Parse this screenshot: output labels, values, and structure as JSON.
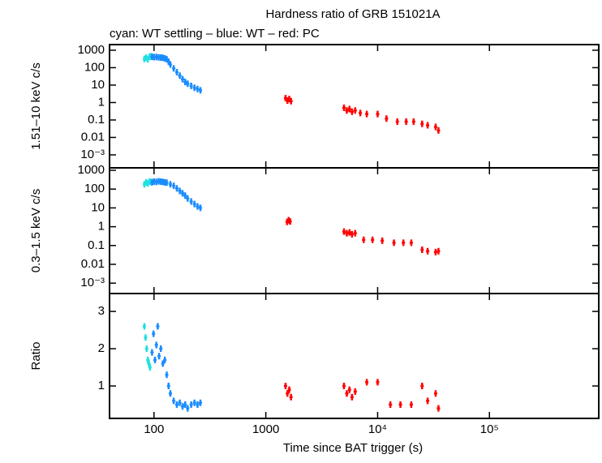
{
  "chart_data": [
    {
      "type": "scatter",
      "title": "Hardness ratio of GRB 151021A",
      "subtitle": "cyan: WT settling – blue: WT – red: PC",
      "ylabel": "1.51–10 keV c/s",
      "xlog": true,
      "ylog": true,
      "xlim": [
        40,
        950000
      ],
      "ylim": [
        0.00018,
        2100
      ],
      "yticks": [
        1000,
        100,
        10,
        1,
        0.1,
        0.01,
        {
          "value": 0.001,
          "label": "10⁻³"
        }
      ],
      "series": [
        {
          "color": "#20e0e0",
          "x": [
            82,
            85,
            88,
            91,
            94
          ],
          "values": [
            320,
            380,
            300,
            420,
            450
          ]
        },
        {
          "color": "#1a8cff",
          "x": [
            96,
            100,
            105,
            110,
            115,
            120,
            125,
            130,
            135,
            140,
            150,
            160,
            170,
            180,
            190,
            200,
            215,
            230,
            245,
            260
          ],
          "values": [
            420,
            400,
            410,
            390,
            380,
            370,
            340,
            300,
            220,
            150,
            90,
            55,
            35,
            22,
            15,
            12,
            9,
            7,
            6,
            5
          ]
        },
        {
          "color": "#ff0000",
          "x": [
            1500,
            1560,
            1620,
            1680,
            5000,
            5300,
            5600,
            5900,
            6300,
            7000,
            8000,
            10000,
            12000,
            15000,
            18000,
            21000,
            25000,
            28000,
            33000,
            35000
          ],
          "values": [
            1.8,
            1.3,
            1.6,
            1.2,
            0.5,
            0.35,
            0.42,
            0.3,
            0.35,
            0.25,
            0.22,
            0.22,
            0.12,
            0.08,
            0.08,
            0.08,
            0.06,
            0.05,
            0.04,
            0.025
          ]
        }
      ]
    },
    {
      "type": "scatter",
      "ylabel": "0.3–1.5 keV c/s",
      "xlog": true,
      "ylog": true,
      "xlim": [
        40,
        950000
      ],
      "ylim": [
        0.00028,
        1350
      ],
      "yticks": [
        1000,
        100,
        10,
        1,
        0.1,
        0.01,
        {
          "value": 0.001,
          "label": "10⁻³"
        }
      ],
      "series": [
        {
          "color": "#20e0e0",
          "x": [
            82,
            85,
            88,
            91,
            94
          ],
          "values": [
            180,
            230,
            200,
            250,
            240
          ]
        },
        {
          "color": "#1a8cff",
          "x": [
            96,
            100,
            105,
            110,
            115,
            120,
            125,
            130,
            140,
            150,
            160,
            170,
            180,
            190,
            200,
            215,
            230,
            245,
            260
          ],
          "values": [
            230,
            250,
            240,
            260,
            250,
            240,
            230,
            220,
            180,
            150,
            110,
            80,
            60,
            45,
            32,
            22,
            16,
            12,
            10
          ]
        },
        {
          "color": "#ff0000",
          "x": [
            1550,
            1600,
            1650,
            5000,
            5300,
            5600,
            5900,
            6300,
            7500,
            9000,
            11000,
            14000,
            17000,
            20000,
            25000,
            28000,
            33000,
            35000
          ],
          "values": [
            1.8,
            2.2,
            1.9,
            0.55,
            0.45,
            0.5,
            0.4,
            0.45,
            0.2,
            0.2,
            0.18,
            0.14,
            0.14,
            0.14,
            0.06,
            0.05,
            0.045,
            0.05
          ]
        }
      ]
    },
    {
      "type": "scatter",
      "ylabel": "Ratio",
      "xlabel": "Time since BAT trigger (s)",
      "xlog": true,
      "ylog": false,
      "xlim": [
        40,
        950000
      ],
      "ylim": [
        0.13,
        3.48
      ],
      "xticks": [
        100,
        1000,
        {
          "value": 10000,
          "label": "10⁴"
        },
        {
          "value": 100000,
          "label": "10⁵"
        }
      ],
      "yticks": [
        1,
        2,
        3
      ],
      "series": [
        {
          "color": "#20e0e0",
          "x": [
            82,
            84,
            86,
            88,
            90,
            92
          ],
          "values": [
            2.6,
            2.3,
            2.0,
            1.7,
            1.6,
            1.5
          ]
        },
        {
          "color": "#1a8cff",
          "x": [
            96,
            99,
            102,
            105,
            108,
            111,
            115,
            120,
            125,
            130,
            135,
            140,
            150,
            160,
            170,
            180,
            190,
            200,
            215,
            230,
            245,
            260
          ],
          "values": [
            1.9,
            2.4,
            1.7,
            2.1,
            2.6,
            1.8,
            2.0,
            1.6,
            1.7,
            1.3,
            1.0,
            0.8,
            0.6,
            0.5,
            0.55,
            0.45,
            0.5,
            0.4,
            0.5,
            0.55,
            0.5,
            0.55
          ]
        },
        {
          "color": "#ff0000",
          "x": [
            1500,
            1560,
            1620,
            1680,
            5000,
            5300,
            5600,
            5900,
            6300,
            8000,
            10000,
            13000,
            16000,
            20000,
            25000,
            28000,
            33000,
            35000
          ],
          "values": [
            1.0,
            0.8,
            0.9,
            0.7,
            1.0,
            0.8,
            0.9,
            0.7,
            0.85,
            1.1,
            1.1,
            0.5,
            0.5,
            0.5,
            1.0,
            0.6,
            0.8,
            0.4
          ]
        }
      ]
    }
  ]
}
